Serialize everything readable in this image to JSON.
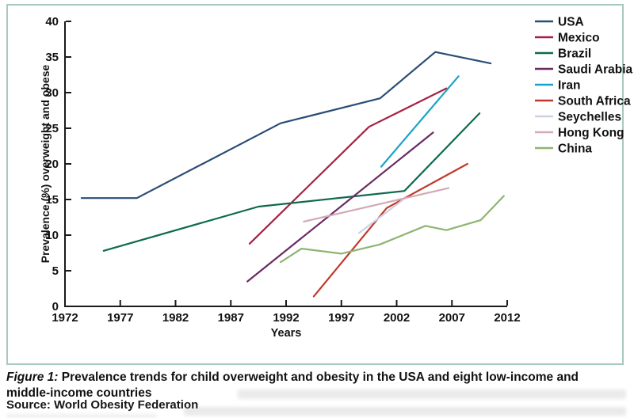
{
  "figure": {
    "caption_label": "Figure 1:",
    "caption_text": " Prevalence trends for child overweight and obesity in the USA and eight low-income and middle-income countries",
    "source": "Source: World Obesity Federation"
  },
  "chart_data": {
    "type": "line",
    "title": "",
    "xlabel": "Years",
    "ylabel": "Prevalence (%) overweight and obese",
    "xlim": [
      1972,
      2012
    ],
    "ylim": [
      0,
      40
    ],
    "x_ticks": [
      1972,
      1977,
      1982,
      1987,
      1992,
      1997,
      2002,
      2007,
      2012
    ],
    "y_ticks": [
      0,
      5,
      10,
      15,
      20,
      25,
      30,
      35,
      40
    ],
    "grid": false,
    "legend_position": "right-outside",
    "axis_color": "#1a1a1a",
    "series": [
      {
        "name": "USA",
        "color": "#2a4d76",
        "points": [
          [
            1973.5,
            15.2
          ],
          [
            1978.5,
            15.2
          ],
          [
            1991.5,
            25.7
          ],
          [
            2000.5,
            29.2
          ],
          [
            2005.5,
            35.7
          ],
          [
            2010.5,
            34.1
          ]
        ]
      },
      {
        "name": "Mexico",
        "color": "#a62045",
        "points": [
          [
            1988.7,
            8.8
          ],
          [
            1999.5,
            25.2
          ],
          [
            2006.5,
            30.6
          ]
        ]
      },
      {
        "name": "Brazil",
        "color": "#0e6b4e",
        "points": [
          [
            1975.5,
            7.8
          ],
          [
            1989.5,
            14.0
          ],
          [
            2002.7,
            16.2
          ],
          [
            2009.5,
            27.1
          ]
        ]
      },
      {
        "name": "Saudi Arabia",
        "color": "#6b2a62",
        "points": [
          [
            1988.5,
            3.5
          ],
          [
            2005.3,
            24.4
          ]
        ]
      },
      {
        "name": "Iran",
        "color": "#1ba3c6",
        "points": [
          [
            2000.6,
            19.6
          ],
          [
            2007.6,
            32.3
          ]
        ]
      },
      {
        "name": "South Africa",
        "color": "#c0392b",
        "points": [
          [
            1994.5,
            1.4
          ],
          [
            2001.1,
            13.8
          ],
          [
            2008.4,
            20.0
          ]
        ]
      },
      {
        "name": "Seychelles",
        "color": "#ccd2e4",
        "points": [
          [
            1998.6,
            10.3
          ],
          [
            2002.6,
            15.0
          ]
        ]
      },
      {
        "name": "Hong Kong",
        "color": "#d3a9b6",
        "points": [
          [
            1993.6,
            11.9
          ],
          [
            2006.7,
            16.6
          ]
        ]
      },
      {
        "name": "China",
        "color": "#8fb470",
        "points": [
          [
            1991.5,
            6.2
          ],
          [
            1993.4,
            8.1
          ],
          [
            1997,
            7.4
          ],
          [
            2000.5,
            8.7
          ],
          [
            2004.6,
            11.3
          ],
          [
            2006.5,
            10.7
          ],
          [
            2009.6,
            12.1
          ],
          [
            2011.7,
            15.5
          ]
        ]
      }
    ]
  }
}
